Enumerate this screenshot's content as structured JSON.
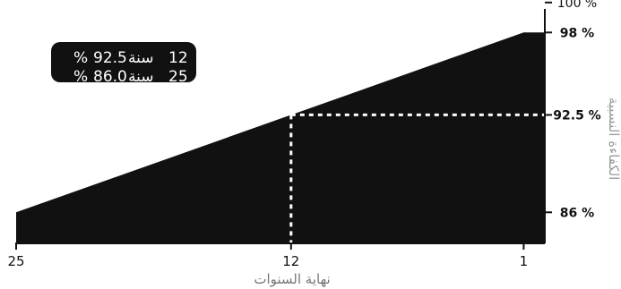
{
  "chart_data": {
    "type": "area",
    "x_axis": {
      "label": "نهاية السنوات",
      "ticks": [
        25,
        12,
        1
      ],
      "range": [
        25,
        1
      ],
      "reversed": true
    },
    "y_axis": {
      "label": "الكفاءة النسبية",
      "tick_labels": [
        {
          "value": 100,
          "text": "100 %"
        },
        {
          "value": 98,
          "text": "98 %"
        },
        {
          "value": 92.5,
          "text": "92.5 %"
        },
        {
          "value": 86,
          "text": "86 %"
        }
      ],
      "position": "right"
    },
    "series": [
      {
        "x": [
          25,
          12,
          1,
          0
        ],
        "y": [
          86.0,
          92.5,
          98.0,
          98.0
        ]
      }
    ],
    "reference_point": {
      "x": 12,
      "y": 92.5,
      "style": "dashed"
    },
    "legend_box": {
      "rows": [
        {
          "year": "12",
          "unit": "سنة",
          "value": "92.5",
          "percent": "%"
        },
        {
          "year": "25",
          "unit": "سنة",
          "value": "86.0",
          "percent": "%"
        }
      ]
    },
    "fill_color": "#111111",
    "dash_color": "#ffffff"
  }
}
